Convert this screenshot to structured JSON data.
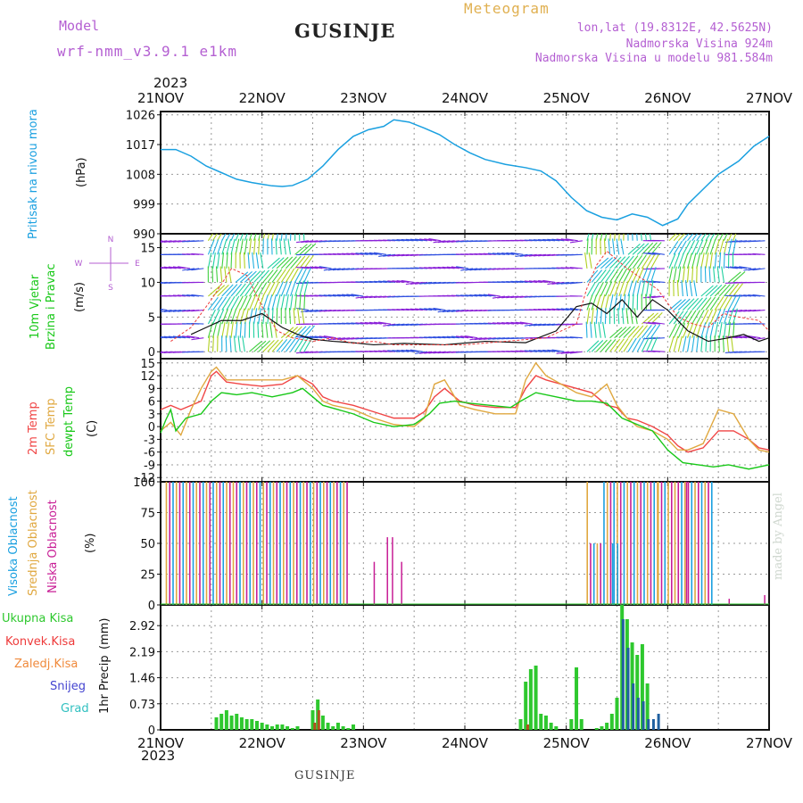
{
  "header": {
    "model_label": "Model",
    "model_name": "wrf-nmm_v3.9.1 e1km",
    "station": "GUSINJE",
    "meteogram_label": "Meteogram",
    "lonlat": "lon,lat (19.8312E, 42.5625N)",
    "elevation": "Nadmorska Visina 924m",
    "model_elevation": "Nadmorska Visina u modelu 981.584m"
  },
  "time_axis": {
    "year": "2023",
    "ticks": [
      "21NOV",
      "22NOV",
      "23NOV",
      "24NOV",
      "25NOV",
      "26NOV",
      "27NOV"
    ]
  },
  "made_by": "made by Angel",
  "footer": {
    "station": "GUSINJE"
  },
  "colors": {
    "pressure": "#1aa0e0",
    "temp2m": "#f04545",
    "sfc_temp": "#e0a840",
    "dewpoint": "#18c818",
    "high_cloud": "#1aa0e0",
    "mid_cloud": "#e0a840",
    "low_cloud": "#c81e96",
    "total_precip": "#2ec82e",
    "conv_precip": "#ee3a3a",
    "freezing": "#f08a3c",
    "snow": "#4444d0",
    "hail": "#30c0c0",
    "wind_speed": "#111111",
    "gust": "#ee3a3a"
  },
  "chart_data": [
    {
      "type": "line",
      "title": "",
      "ylabel_line1": "Pritisak na nivou mora",
      "unit": "(hPa)",
      "y_ticks": [
        "1026",
        "1017",
        "1008",
        "999",
        "990"
      ],
      "ylim": [
        990,
        1027
      ],
      "x_range_days": [
        0,
        6
      ],
      "series": [
        {
          "name": "Pritisak na nivou mora",
          "x": [
            0,
            0.15,
            0.3,
            0.45,
            0.6,
            0.75,
            0.9,
            1.0,
            1.1,
            1.2,
            1.3,
            1.45,
            1.6,
            1.75,
            1.9,
            2.05,
            2.2,
            2.3,
            2.45,
            2.6,
            2.75,
            2.9,
            3.05,
            3.2,
            3.4,
            3.6,
            3.75,
            3.9,
            4.05,
            4.2,
            4.35,
            4.5,
            4.65,
            4.8,
            4.95,
            5.1,
            5.2,
            5.35,
            5.5,
            5.7,
            5.85,
            6.0
          ],
          "y": [
            1015.5,
            1015.5,
            1013.5,
            1010.5,
            1008.5,
            1006.5,
            1005.5,
            1005.0,
            1004.5,
            1004.3,
            1004.6,
            1006.5,
            1010.5,
            1015.5,
            1019.5,
            1021.5,
            1022.5,
            1024.5,
            1023.8,
            1022.0,
            1020.0,
            1017.0,
            1014.5,
            1012.5,
            1011.0,
            1010.0,
            1009.0,
            1006.0,
            1001.0,
            997.0,
            995.0,
            994.2,
            996.0,
            995.0,
            992.5,
            994.5,
            999.0,
            1003.5,
            1008.0,
            1012.0,
            1016.5,
            1019.5
          ]
        }
      ]
    },
    {
      "type": "line",
      "title": "",
      "ylabel_line1": "10m Vjetar",
      "ylabel_line2": "Brzina i Pravac",
      "unit": "(m/s)",
      "compass": [
        "N",
        "S",
        "W",
        "E"
      ],
      "y_ticks": [
        "15",
        "10",
        "5",
        "0"
      ],
      "ylim": [
        -1,
        17
      ],
      "x_range_days": [
        0,
        6
      ],
      "series": [
        {
          "name": "wind_speed",
          "x": [
            0.3,
            0.45,
            0.6,
            0.8,
            1.0,
            1.2,
            1.35,
            1.5,
            1.7,
            1.9,
            2.1,
            2.4,
            2.8,
            3.2,
            3.6,
            3.9,
            4.1,
            4.25,
            4.4,
            4.55,
            4.7,
            4.85,
            5.0,
            5.2,
            5.4,
            5.6,
            5.75,
            5.9,
            6.0
          ],
          "y": [
            2.5,
            3.5,
            4.5,
            4.5,
            5.5,
            3.5,
            2.5,
            1.8,
            1.5,
            1.3,
            1.0,
            1.2,
            1.0,
            1.5,
            1.3,
            3.0,
            6.5,
            7.0,
            5.5,
            7.5,
            5.0,
            7.5,
            6.0,
            3.0,
            1.5,
            2.0,
            2.5,
            1.5,
            2.0
          ]
        },
        {
          "name": "gust",
          "x": [
            0.1,
            0.3,
            0.5,
            0.7,
            0.85,
            1.0,
            1.15,
            1.3,
            1.5,
            1.7,
            1.9,
            2.1,
            2.3,
            2.6,
            3.0,
            3.4,
            3.8,
            4.1,
            4.2,
            4.3,
            4.4,
            4.6,
            4.75,
            4.9,
            5.0,
            5.1,
            5.25,
            5.4,
            5.55,
            5.7,
            5.9,
            6.0
          ],
          "y": [
            1.5,
            3.5,
            7.5,
            12.0,
            11.0,
            6.5,
            3.0,
            2.0,
            1.5,
            2.0,
            1.2,
            1.5,
            1.0,
            1.0,
            1.0,
            1.5,
            2.0,
            4.0,
            9.0,
            12.5,
            14.5,
            12.0,
            10.5,
            9.0,
            7.0,
            5.0,
            4.0,
            3.5,
            5.5,
            5.0,
            4.5,
            3.0
          ]
        }
      ]
    },
    {
      "type": "line",
      "title": "",
      "ylabel_line1": "2m Temp",
      "ylabel_line2": "SFC Temp",
      "ylabel_line3": "dewpt Temp",
      "unit": "(C)",
      "y_ticks": [
        "15",
        "12",
        "9",
        "6",
        "3",
        "0",
        "-3",
        "-6",
        "-9",
        "-12"
      ],
      "ylim": [
        -13,
        16
      ],
      "x_range_days": [
        0,
        6
      ],
      "series": [
        {
          "name": "2m Temp",
          "x": [
            0,
            0.1,
            0.2,
            0.3,
            0.4,
            0.5,
            0.55,
            0.65,
            0.8,
            1.0,
            1.2,
            1.35,
            1.5,
            1.6,
            1.7,
            1.9,
            2.1,
            2.3,
            2.5,
            2.6,
            2.7,
            2.8,
            2.95,
            3.1,
            3.3,
            3.5,
            3.6,
            3.7,
            3.8,
            3.95,
            4.1,
            4.25,
            4.4,
            4.5,
            4.6,
            4.7,
            4.85,
            5.0,
            5.1,
            5.2,
            5.35,
            5.5,
            5.65,
            5.8,
            5.9,
            6.0
          ],
          "y": [
            4,
            5,
            4,
            5,
            6,
            12,
            13,
            10.5,
            10,
            9.5,
            10,
            12,
            10,
            7,
            6,
            5,
            3.5,
            2,
            2,
            3.5,
            7,
            9,
            6,
            5,
            4.5,
            4.5,
            9,
            12,
            11,
            10,
            9,
            8,
            5,
            4.5,
            2,
            1.5,
            0,
            -2,
            -4.5,
            -6,
            -5,
            -1,
            -1,
            -3,
            -5,
            -5.5
          ]
        },
        {
          "name": "SFC Temp",
          "x": [
            0,
            0.1,
            0.2,
            0.3,
            0.4,
            0.5,
            0.55,
            0.65,
            0.8,
            1.0,
            1.2,
            1.35,
            1.5,
            1.6,
            1.7,
            1.9,
            2.1,
            2.3,
            2.5,
            2.6,
            2.7,
            2.8,
            2.95,
            3.1,
            3.3,
            3.5,
            3.6,
            3.7,
            3.8,
            3.95,
            4.1,
            4.25,
            4.4,
            4.5,
            4.6,
            4.7,
            4.85,
            5.0,
            5.1,
            5.2,
            5.35,
            5.5,
            5.65,
            5.8,
            5.9,
            6.0
          ],
          "y": [
            -1,
            1,
            -2,
            4,
            9,
            13,
            14,
            11,
            11,
            11,
            11,
            12,
            9,
            6,
            5,
            4,
            2,
            0.5,
            0,
            2,
            10,
            11,
            5,
            4,
            3,
            3,
            11,
            15,
            12,
            10,
            8,
            7,
            10,
            5,
            2,
            0,
            -1,
            -3,
            -5.5,
            -5.5,
            -4,
            4,
            3,
            -3,
            -5.5,
            -6
          ]
        },
        {
          "name": "dewpt Temp",
          "x": [
            0,
            0.05,
            0.1,
            0.15,
            0.25,
            0.4,
            0.5,
            0.6,
            0.75,
            0.9,
            1.1,
            1.3,
            1.4,
            1.5,
            1.6,
            1.75,
            1.9,
            2.1,
            2.3,
            2.5,
            2.65,
            2.75,
            2.9,
            3.05,
            3.25,
            3.45,
            3.55,
            3.7,
            3.9,
            4.1,
            4.25,
            4.4,
            4.55,
            4.7,
            4.85,
            5.0,
            5.15,
            5.3,
            5.45,
            5.6,
            5.8,
            6.0
          ],
          "y": [
            -1.5,
            1.5,
            4,
            -1,
            2,
            3,
            6,
            8,
            7.5,
            8,
            7,
            8,
            9,
            7,
            5,
            4,
            3,
            1,
            0,
            0.5,
            3,
            5.5,
            6,
            5.5,
            5,
            4.5,
            6,
            8,
            7,
            6,
            6,
            5.5,
            2,
            0.5,
            -1,
            -5.5,
            -8.5,
            -9,
            -9.5,
            -9,
            -10,
            -9
          ]
        }
      ]
    },
    {
      "type": "bar",
      "title": "",
      "ylabel_line1": "Visoka Oblacnost",
      "ylabel_line2": "Srednja Oblacnost",
      "ylabel_line3": "Niska Oblacnost",
      "unit": "(%)",
      "y_ticks": [
        "100",
        "75",
        "50",
        "25",
        "0"
      ],
      "ylim": [
        0,
        100
      ],
      "x_range_days": [
        0,
        6
      ],
      "series": [
        {
          "name": "Visoka Oblacnost",
          "x": [
            0.05,
            4.35,
            4.4,
            4.45,
            5.0,
            5.05
          ],
          "values": [
            100,
            60,
            55,
            50,
            15,
            10
          ]
        },
        {
          "name": "Srednja Oblacnost",
          "x": [
            0.08,
            1.0,
            2.0,
            3.2,
            4.4,
            4.75,
            5.0,
            5.5,
            5.9
          ],
          "values": [
            100,
            100,
            100,
            0,
            100,
            100,
            100,
            100,
            100
          ]
        },
        {
          "name": "Niska Oblacnost",
          "x": [
            2.05,
            2.2,
            2.25,
            2.35,
            4.15,
            4.45,
            4.6,
            4.9,
            5.2,
            5.5,
            5.95,
            6.0
          ],
          "values": [
            35,
            55,
            55,
            35,
            35,
            100,
            50,
            30,
            100,
            5,
            5,
            8
          ]
        }
      ]
    },
    {
      "type": "bar",
      "title": "",
      "ylabel_line1": "1hr Precip",
      "unit": "(mm)",
      "legend": [
        "Ukupna Kisa",
        "Konvek.Kisa",
        "Zaledj.Kisa",
        "Snijeg",
        "Grad"
      ],
      "y_ticks": [
        "2.92",
        "2.19",
        "1.46",
        "0.73",
        "0"
      ],
      "ylim": [
        0,
        3.5
      ],
      "x_range_days": [
        0,
        6
      ],
      "series": [
        {
          "name": "Ukupna Kisa",
          "x": [
            0.55,
            0.6,
            0.65,
            0.7,
            0.75,
            0.8,
            0.85,
            0.9,
            0.95,
            1.0,
            1.05,
            1.1,
            1.15,
            1.2,
            1.25,
            1.3,
            1.35,
            1.5,
            1.55,
            1.6,
            1.65,
            1.7,
            1.75,
            1.8,
            1.85,
            1.9,
            3.55,
            3.6,
            3.65,
            3.7,
            3.75,
            3.8,
            3.85,
            3.9,
            4.05,
            4.1,
            4.15,
            4.3,
            4.35,
            4.4,
            4.45,
            4.5,
            4.55,
            4.6,
            4.65,
            4.7,
            4.75,
            4.8
          ],
          "values": [
            0.35,
            0.45,
            0.55,
            0.4,
            0.45,
            0.35,
            0.3,
            0.3,
            0.25,
            0.2,
            0.15,
            0.1,
            0.15,
            0.15,
            0.1,
            0.05,
            0.1,
            0.55,
            0.85,
            0.4,
            0.2,
            0.1,
            0.2,
            0.1,
            0.05,
            0.15,
            0.3,
            1.35,
            1.7,
            1.8,
            0.45,
            0.4,
            0.2,
            0.1,
            0.3,
            1.75,
            0.3,
            0.05,
            0.1,
            0.2,
            0.45,
            0.9,
            3.5,
            3.1,
            2.45,
            2.1,
            2.4,
            1.3
          ]
        },
        {
          "name": "Konvek.Kisa",
          "x": [
            1.52,
            1.56,
            3.62
          ],
          "values": [
            0.2,
            0.55,
            0.15
          ]
        },
        {
          "name": "Snijeg",
          "x": [
            4.56,
            4.61,
            4.66,
            4.71,
            4.76,
            4.81,
            4.86,
            4.91
          ],
          "values": [
            3.1,
            2.3,
            1.3,
            0.9,
            0.8,
            0.3,
            0.3,
            0.45
          ]
        }
      ]
    }
  ]
}
